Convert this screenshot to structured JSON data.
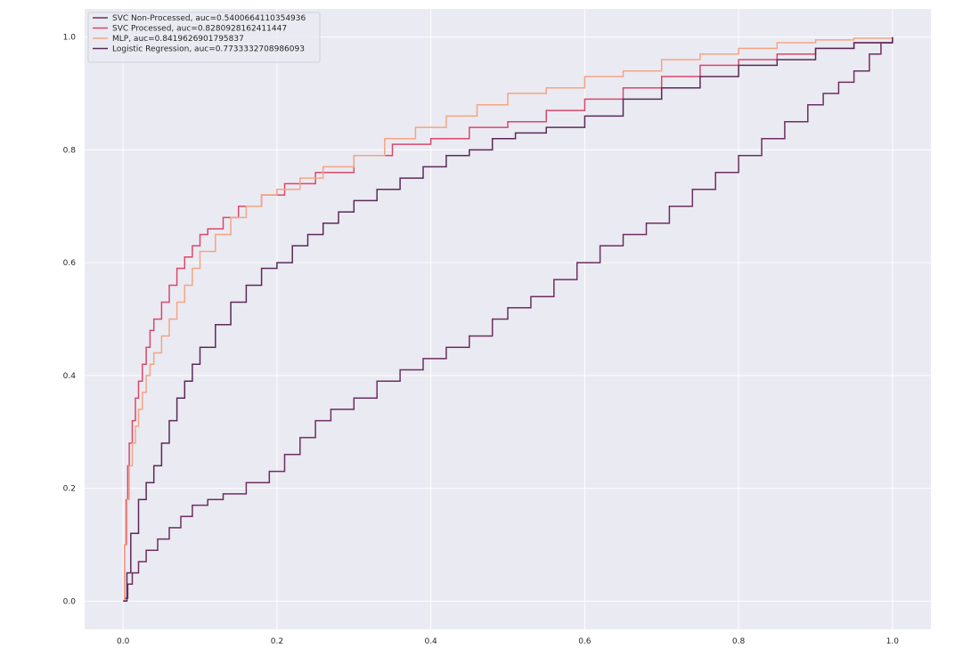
{
  "chart_data": {
    "type": "line",
    "title": "",
    "xlabel": "",
    "ylabel": "",
    "xlim": [
      -0.05,
      1.05
    ],
    "ylim": [
      -0.05,
      1.05
    ],
    "xticks": [
      "0.0",
      "0.2",
      "0.4",
      "0.6",
      "0.8",
      "1.0"
    ],
    "yticks": [
      "0.0",
      "0.2",
      "0.4",
      "0.6",
      "0.8",
      "1.0"
    ],
    "grid": true,
    "legend_position": "top-left",
    "background": "#eaeaf2",
    "series": [
      {
        "name": "SVC Non-Processed, auc=0.5400664110354936",
        "color": "#6d2f5f",
        "x": [
          0,
          0.002,
          0.006,
          0.012,
          0.02,
          0.03,
          0.045,
          0.06,
          0.075,
          0.09,
          0.11,
          0.13,
          0.16,
          0.19,
          0.21,
          0.23,
          0.25,
          0.27,
          0.3,
          0.33,
          0.36,
          0.39,
          0.42,
          0.45,
          0.48,
          0.5,
          0.53,
          0.56,
          0.59,
          0.62,
          0.65,
          0.68,
          0.71,
          0.74,
          0.77,
          0.8,
          0.83,
          0.86,
          0.89,
          0.91,
          0.93,
          0.95,
          0.97,
          0.985,
          1.0
        ],
        "y": [
          0,
          0.005,
          0.03,
          0.05,
          0.07,
          0.09,
          0.11,
          0.13,
          0.15,
          0.17,
          0.18,
          0.19,
          0.21,
          0.23,
          0.26,
          0.29,
          0.32,
          0.34,
          0.36,
          0.39,
          0.41,
          0.43,
          0.45,
          0.47,
          0.5,
          0.52,
          0.54,
          0.57,
          0.6,
          0.63,
          0.65,
          0.67,
          0.7,
          0.73,
          0.76,
          0.79,
          0.82,
          0.85,
          0.88,
          0.9,
          0.92,
          0.94,
          0.97,
          0.99,
          1.0
        ]
      },
      {
        "name": "SVC Processed, auc=0.8280928162411447",
        "color": "#d9486b",
        "x": [
          0,
          0.002,
          0.004,
          0.006,
          0.008,
          0.012,
          0.016,
          0.02,
          0.025,
          0.03,
          0.035,
          0.04,
          0.05,
          0.06,
          0.07,
          0.08,
          0.09,
          0.1,
          0.11,
          0.13,
          0.15,
          0.18,
          0.21,
          0.25,
          0.3,
          0.35,
          0.4,
          0.45,
          0.5,
          0.55,
          0.6,
          0.65,
          0.7,
          0.75,
          0.8,
          0.85,
          0.9,
          0.95,
          1.0
        ],
        "y": [
          0,
          0.1,
          0.18,
          0.24,
          0.28,
          0.32,
          0.36,
          0.39,
          0.42,
          0.45,
          0.48,
          0.5,
          0.53,
          0.56,
          0.59,
          0.61,
          0.63,
          0.65,
          0.66,
          0.68,
          0.7,
          0.72,
          0.74,
          0.76,
          0.79,
          0.81,
          0.82,
          0.84,
          0.85,
          0.87,
          0.89,
          0.91,
          0.93,
          0.95,
          0.96,
          0.97,
          0.98,
          0.99,
          1.0
        ]
      },
      {
        "name": "MLP, auc=0.8419626901795837",
        "color": "#f4a582",
        "x": [
          0,
          0.002,
          0.005,
          0.008,
          0.012,
          0.016,
          0.02,
          0.025,
          0.03,
          0.035,
          0.04,
          0.05,
          0.06,
          0.07,
          0.08,
          0.09,
          0.1,
          0.12,
          0.14,
          0.16,
          0.18,
          0.2,
          0.23,
          0.26,
          0.3,
          0.34,
          0.38,
          0.42,
          0.46,
          0.5,
          0.55,
          0.6,
          0.65,
          0.7,
          0.75,
          0.8,
          0.85,
          0.9,
          0.95,
          1.0
        ],
        "y": [
          0,
          0.1,
          0.18,
          0.24,
          0.28,
          0.31,
          0.34,
          0.37,
          0.4,
          0.42,
          0.44,
          0.47,
          0.5,
          0.53,
          0.56,
          0.59,
          0.62,
          0.65,
          0.68,
          0.7,
          0.72,
          0.73,
          0.75,
          0.77,
          0.79,
          0.82,
          0.84,
          0.86,
          0.88,
          0.9,
          0.91,
          0.93,
          0.94,
          0.96,
          0.97,
          0.98,
          0.99,
          0.995,
          0.998,
          1.0
        ]
      },
      {
        "name": "Logistic Regression, auc=0.7733332708986093",
        "color": "#5b2a58",
        "x": [
          0,
          0.005,
          0.01,
          0.02,
          0.03,
          0.04,
          0.05,
          0.06,
          0.07,
          0.08,
          0.09,
          0.1,
          0.12,
          0.14,
          0.16,
          0.18,
          0.2,
          0.22,
          0.24,
          0.26,
          0.28,
          0.3,
          0.33,
          0.36,
          0.39,
          0.42,
          0.45,
          0.48,
          0.51,
          0.55,
          0.6,
          0.65,
          0.7,
          0.75,
          0.8,
          0.85,
          0.9,
          0.95,
          1.0
        ],
        "y": [
          0,
          0.05,
          0.12,
          0.18,
          0.21,
          0.24,
          0.28,
          0.32,
          0.36,
          0.39,
          0.42,
          0.45,
          0.49,
          0.53,
          0.56,
          0.59,
          0.6,
          0.63,
          0.65,
          0.67,
          0.69,
          0.71,
          0.73,
          0.75,
          0.77,
          0.79,
          0.8,
          0.82,
          0.83,
          0.84,
          0.86,
          0.89,
          0.91,
          0.93,
          0.95,
          0.96,
          0.98,
          0.99,
          1.0
        ]
      }
    ]
  }
}
